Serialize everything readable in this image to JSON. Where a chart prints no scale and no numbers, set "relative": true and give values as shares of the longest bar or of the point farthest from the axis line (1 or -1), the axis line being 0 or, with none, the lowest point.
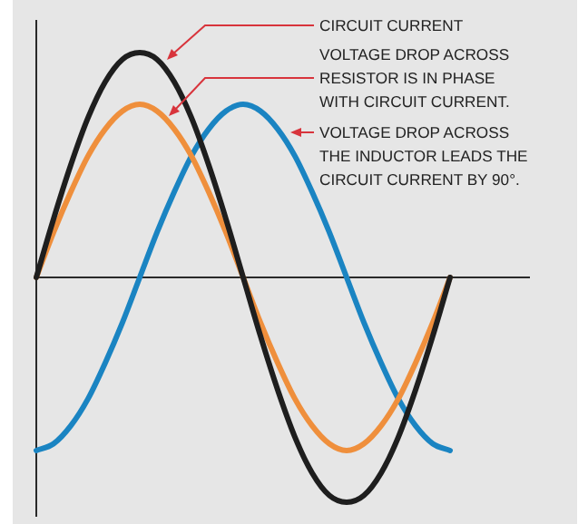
{
  "chart_data": {
    "type": "line",
    "relative": true,
    "marker": "none",
    "line_style": "solid",
    "categories": [
      null,
      null,
      null,
      null,
      null,
      null,
      null,
      null,
      null,
      null,
      null,
      null,
      null,
      null,
      null,
      null,
      null,
      null,
      null,
      null,
      null,
      null,
      null,
      null,
      null
    ],
    "series": [
      {
        "color": "#1e1e1e",
        "values": [
          0,
          0.26,
          0.5,
          0.71,
          0.87,
          0.97,
          1,
          0.97,
          0.87,
          0.71,
          0.5,
          0.26,
          0,
          -0.26,
          -0.5,
          -0.71,
          -0.87,
          -0.97,
          -1,
          -0.97,
          -0.87,
          -0.71,
          -0.5,
          -0.26,
          0
        ]
      },
      {
        "color": "#ef8f3c",
        "values": [
          0,
          0.2,
          0.38,
          0.54,
          0.66,
          0.74,
          0.77,
          0.74,
          0.66,
          0.54,
          0.38,
          0.2,
          0,
          -0.2,
          -0.38,
          -0.54,
          -0.66,
          -0.74,
          -0.77,
          -0.74,
          -0.66,
          -0.54,
          -0.38,
          -0.2,
          0
        ]
      },
      {
        "color": "#1a84c2",
        "values": [
          -0.77,
          -0.74,
          -0.66,
          -0.54,
          -0.38,
          -0.2,
          0,
          0.2,
          0.38,
          0.54,
          0.66,
          0.74,
          0.77,
          0.74,
          0.66,
          0.54,
          0.38,
          0.2,
          0,
          -0.2,
          -0.38,
          -0.54,
          -0.66,
          -0.74,
          -0.77
        ]
      }
    ],
    "annotations": [
      "CIRCUIT CURRENT",
      "VOLTAGE DROP ACROSS\nRESISTOR IS IN PHASE\nWITH CIRCUIT CURRENT.",
      "VOLTAGE DROP ACROSS\nTHE INDUCTOR LEADS THE\nCIRCUIT CURRENT BY 90°."
    ]
  }
}
